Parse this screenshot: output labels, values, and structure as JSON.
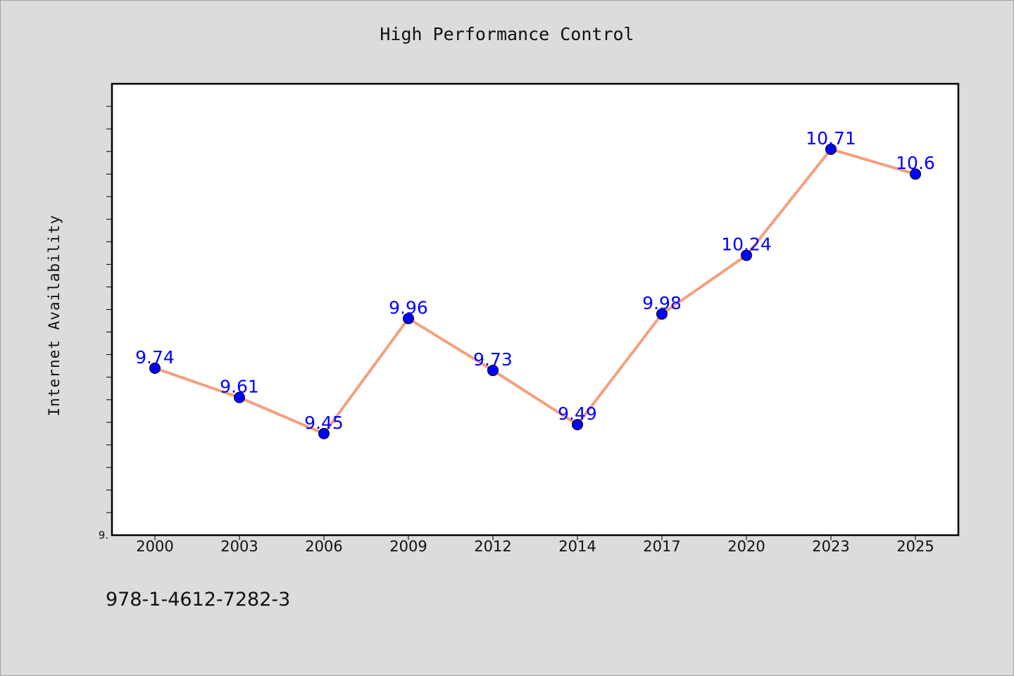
{
  "chart_data": {
    "type": "line",
    "title": "High Performance Control",
    "xlabel": "",
    "ylabel": "Internet Availability",
    "categories": [
      "2000",
      "2003",
      "2006",
      "2009",
      "2012",
      "2014",
      "2017",
      "2020",
      "2023",
      "2025"
    ],
    "series": [
      {
        "values": [
          9.74,
          9.61,
          9.45,
          9.96,
          9.73,
          9.49,
          9.98,
          10.24,
          10.71,
          10.6
        ]
      }
    ],
    "data_labels": [
      "9.74",
      "9.61",
      "9.45",
      "9.96",
      "9.73",
      "9.49",
      "9.98",
      "10.24",
      "10.71",
      "10.6"
    ],
    "ylim": [
      9.0,
      11.0
    ],
    "y_tick_label": "9.",
    "grid": false,
    "line_color": "#f4a07e",
    "marker_color": "#0000ff",
    "label_color": "#0000ff",
    "plot_background": "#ffffff",
    "page_background": "#dcdcdc"
  },
  "footer": {
    "isbn": "978-1-4612-7282-3"
  }
}
